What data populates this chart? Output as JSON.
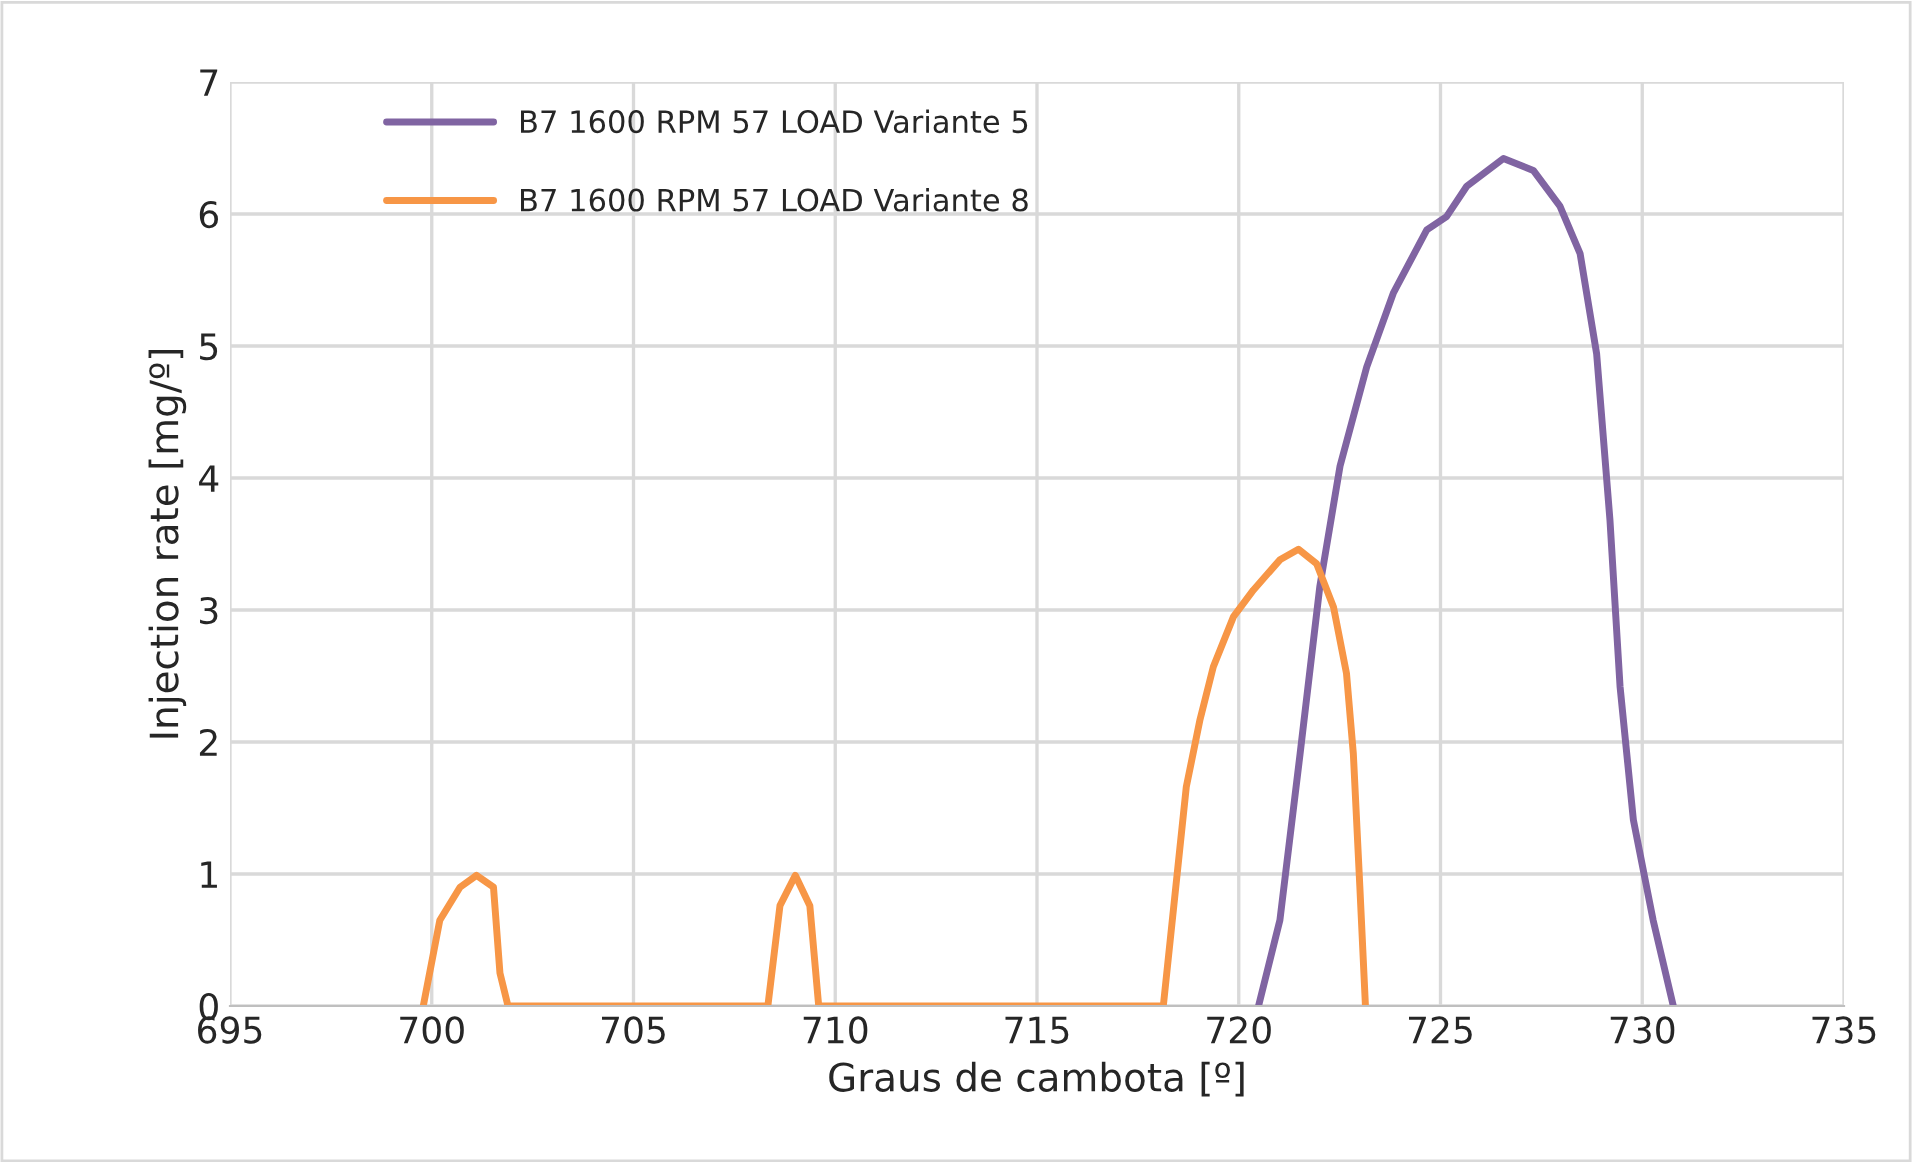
{
  "chart_data": {
    "type": "line",
    "xlabel": "Graus de cambota [º]",
    "ylabel": "Injection rate [mg/º]",
    "xlim": [
      695,
      735
    ],
    "xticks": [
      695,
      700,
      705,
      710,
      715,
      720,
      725,
      730,
      735
    ],
    "ylim": [
      0,
      7
    ],
    "yticks": [
      0,
      1,
      2,
      3,
      4,
      5,
      6,
      7
    ],
    "grid": true,
    "legend": "top left",
    "marker": "none",
    "line_style": "solid",
    "series": [
      {
        "name": "B7 1600 RPM 57 LOAD Variante 5",
        "color": "#8064a2",
        "x": [
          720.49,
          721.02,
          721.52,
          722.01,
          722.51,
          723.17,
          723.83,
          724.66,
          725.15,
          725.65,
          726.56,
          727.3,
          727.96,
          728.46,
          728.87,
          729.2,
          729.45,
          729.78,
          730.27,
          730.77
        ],
        "values": [
          0,
          0.65,
          1.91,
          3.18,
          4.09,
          4.84,
          5.4,
          5.88,
          5.98,
          6.21,
          6.42,
          6.33,
          6.06,
          5.7,
          4.94,
          3.68,
          2.42,
          1.41,
          0.65,
          0
        ]
      },
      {
        "name": "B7 1600 RPM 57 LOAD Variante 8",
        "color": "#f79646",
        "x": [
          699.79,
          700.2,
          700.7,
          701.11,
          701.53,
          701.69,
          701.89,
          708.33,
          708.63,
          709.01,
          709.37,
          709.59,
          718.13,
          718.7,
          719.04,
          719.37,
          719.87,
          720.36,
          721.02,
          721.48,
          721.93,
          722.35,
          722.67,
          722.84,
          723.0,
          723.14
        ],
        "values": [
          0,
          0.65,
          0.9,
          0.99,
          0.9,
          0.25,
          0,
          0,
          0.76,
          0.99,
          0.76,
          0,
          0,
          1.66,
          2.17,
          2.57,
          2.95,
          3.15,
          3.38,
          3.46,
          3.35,
          3.02,
          2.52,
          1.91,
          0.91,
          0
        ]
      }
    ]
  }
}
